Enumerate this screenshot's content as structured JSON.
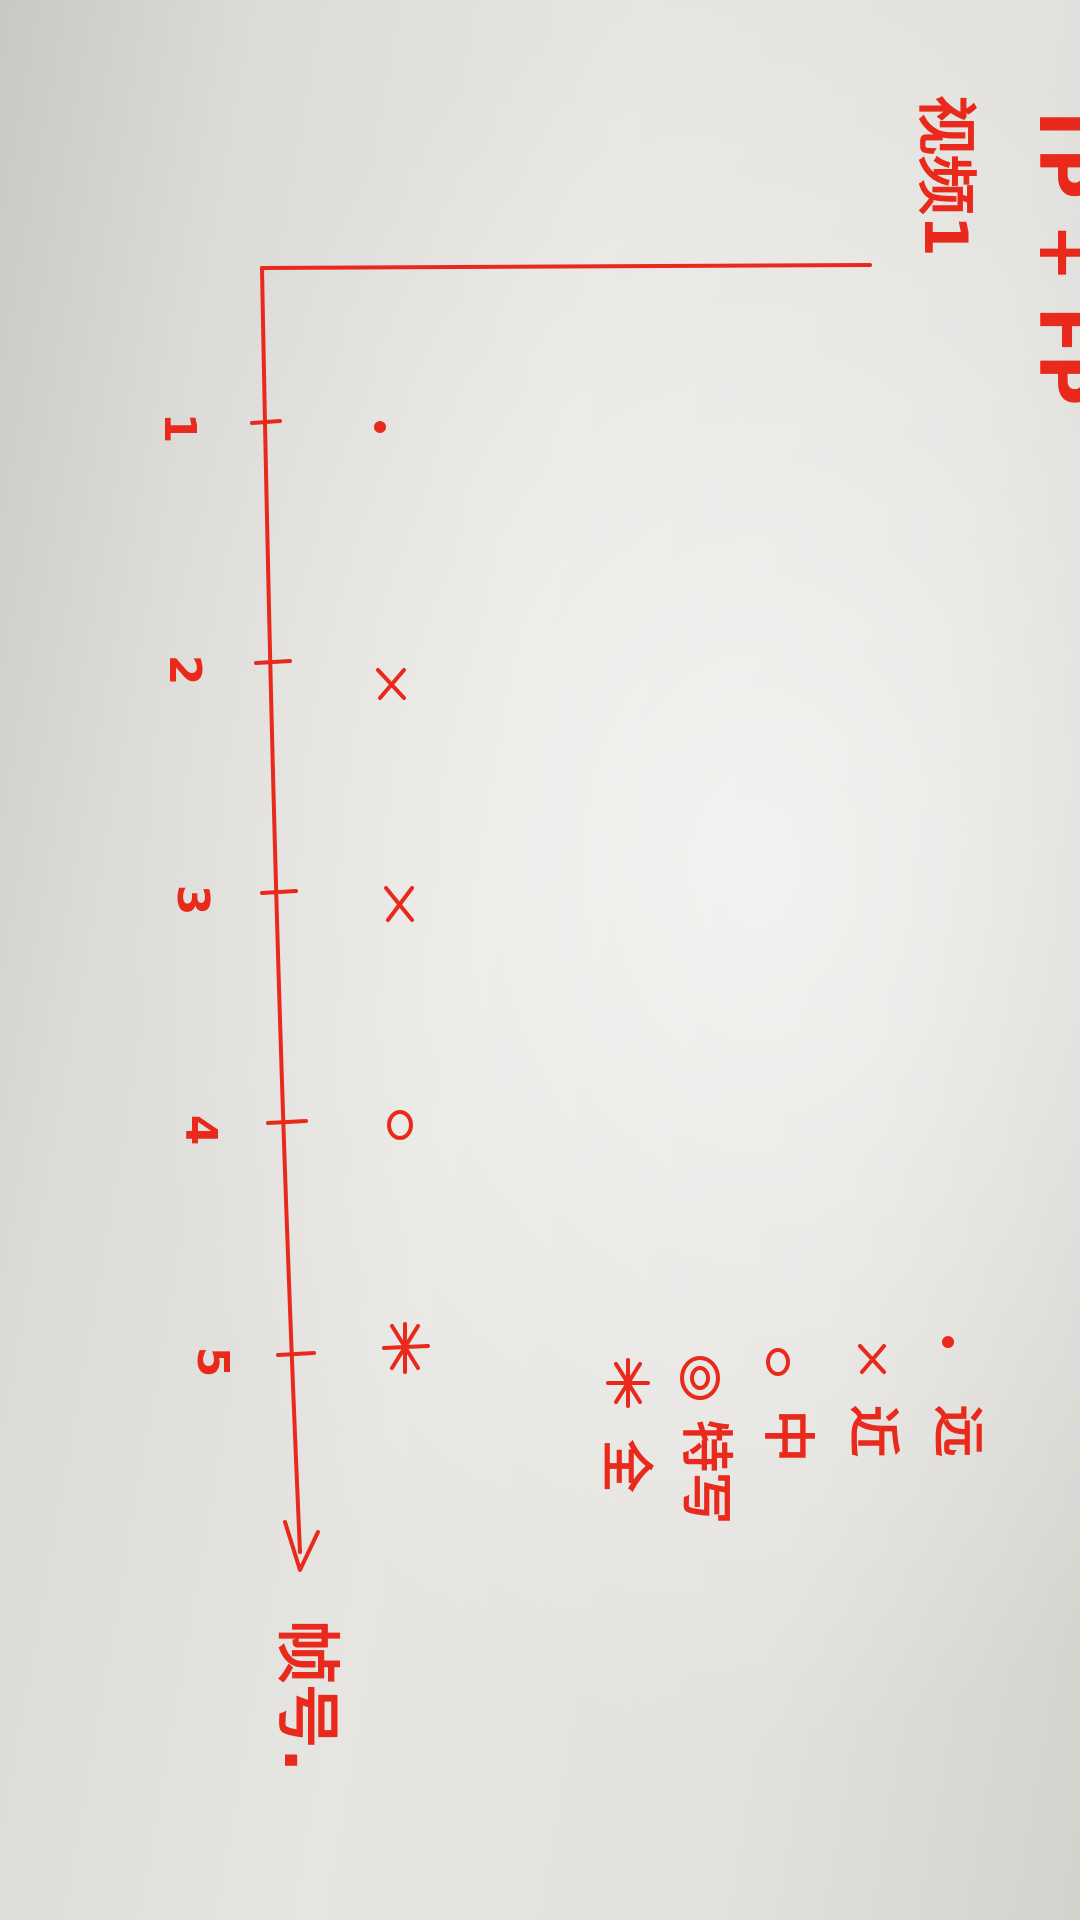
{
  "photo": {
    "subject": "hand-drawn plot",
    "ink_color": "#e8291c",
    "paper_color": "#e3e2de"
  },
  "chart_data": {
    "type": "scatter",
    "orientation": "rotated-90-clockwise",
    "title": "TP + FP",
    "xlabel": "帧号.",
    "ylabel": "视频1",
    "x_ticks": [
      "1",
      "2",
      "3",
      "4",
      "5"
    ],
    "points": [
      {
        "x": 1,
        "marker": "dot"
      },
      {
        "x": 2,
        "marker": "x"
      },
      {
        "x": 3,
        "marker": "x"
      },
      {
        "x": 4,
        "marker": "circle"
      },
      {
        "x": 5,
        "marker": "asterisk"
      }
    ],
    "legend": [
      {
        "marker": "dot",
        "label": "远"
      },
      {
        "marker": "x",
        "label": "近"
      },
      {
        "marker": "circle",
        "label": "中"
      },
      {
        "marker": "double-circle",
        "label": "特写"
      },
      {
        "marker": "asterisk",
        "label": "全"
      }
    ]
  }
}
